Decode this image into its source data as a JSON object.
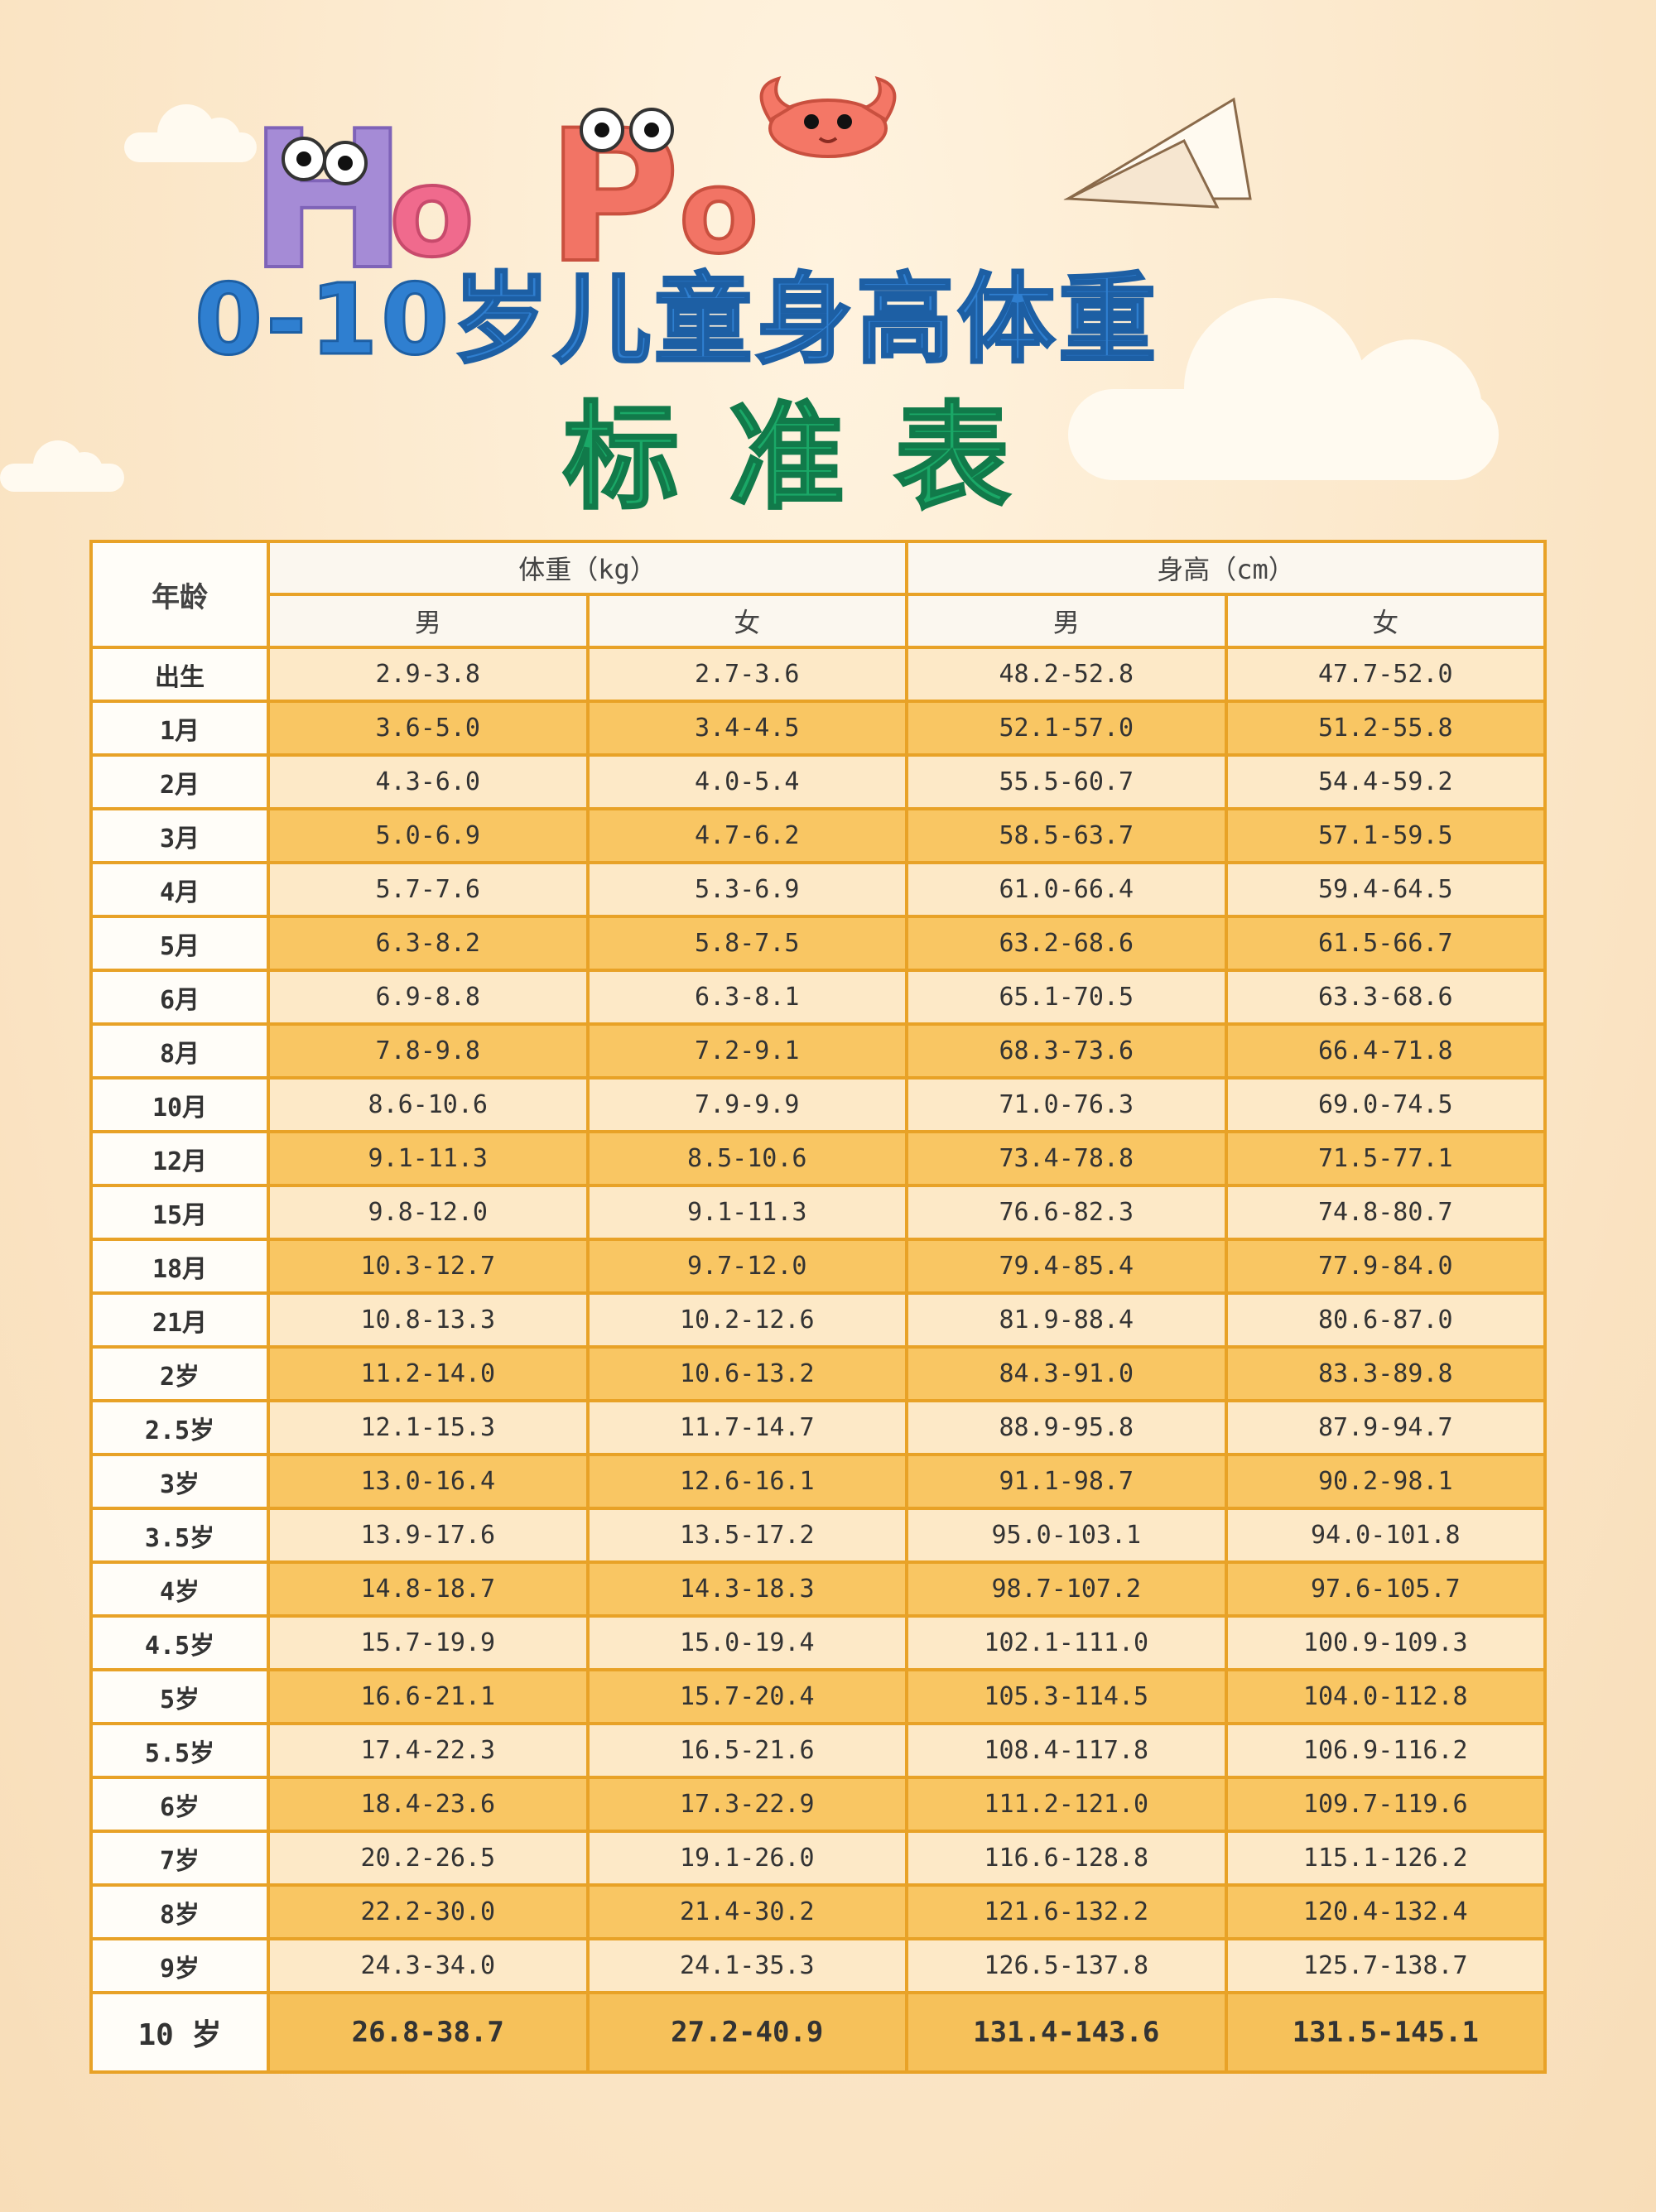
{
  "decor": {
    "letters": [
      "H",
      "o",
      "P",
      "o"
    ]
  },
  "title": {
    "line1": "0-10岁儿童身高体重",
    "line2": "标准表"
  },
  "table": {
    "age_header": "年龄",
    "weight_header": "体重（kg）",
    "height_header": "身高（cm）",
    "male": "男",
    "female": "女",
    "rows": [
      {
        "age": "出生",
        "w_m": "2.9-3.8",
        "w_f": "2.7-3.6",
        "h_m": "48.2-52.8",
        "h_f": "47.7-52.0"
      },
      {
        "age": "1月",
        "w_m": "3.6-5.0",
        "w_f": "3.4-4.5",
        "h_m": "52.1-57.0",
        "h_f": "51.2-55.8"
      },
      {
        "age": "2月",
        "w_m": "4.3-6.0",
        "w_f": "4.0-5.4",
        "h_m": "55.5-60.7",
        "h_f": "54.4-59.2"
      },
      {
        "age": "3月",
        "w_m": "5.0-6.9",
        "w_f": "4.7-6.2",
        "h_m": "58.5-63.7",
        "h_f": "57.1-59.5"
      },
      {
        "age": "4月",
        "w_m": "5.7-7.6",
        "w_f": "5.3-6.9",
        "h_m": "61.0-66.4",
        "h_f": "59.4-64.5"
      },
      {
        "age": "5月",
        "w_m": "6.3-8.2",
        "w_f": "5.8-7.5",
        "h_m": "63.2-68.6",
        "h_f": "61.5-66.7"
      },
      {
        "age": "6月",
        "w_m": "6.9-8.8",
        "w_f": "6.3-8.1",
        "h_m": "65.1-70.5",
        "h_f": "63.3-68.6"
      },
      {
        "age": "8月",
        "w_m": "7.8-9.8",
        "w_f": "7.2-9.1",
        "h_m": "68.3-73.6",
        "h_f": "66.4-71.8"
      },
      {
        "age": "10月",
        "w_m": "8.6-10.6",
        "w_f": "7.9-9.9",
        "h_m": "71.0-76.3",
        "h_f": "69.0-74.5"
      },
      {
        "age": "12月",
        "w_m": "9.1-11.3",
        "w_f": "8.5-10.6",
        "h_m": "73.4-78.8",
        "h_f": "71.5-77.1"
      },
      {
        "age": "15月",
        "w_m": "9.8-12.0",
        "w_f": "9.1-11.3",
        "h_m": "76.6-82.3",
        "h_f": "74.8-80.7"
      },
      {
        "age": "18月",
        "w_m": "10.3-12.7",
        "w_f": "9.7-12.0",
        "h_m": "79.4-85.4",
        "h_f": "77.9-84.0"
      },
      {
        "age": "21月",
        "w_m": "10.8-13.3",
        "w_f": "10.2-12.6",
        "h_m": "81.9-88.4",
        "h_f": "80.6-87.0"
      },
      {
        "age": "2岁",
        "w_m": "11.2-14.0",
        "w_f": "10.6-13.2",
        "h_m": "84.3-91.0",
        "h_f": "83.3-89.8"
      },
      {
        "age": "2.5岁",
        "w_m": "12.1-15.3",
        "w_f": "11.7-14.7",
        "h_m": "88.9-95.8",
        "h_f": "87.9-94.7"
      },
      {
        "age": "3岁",
        "w_m": "13.0-16.4",
        "w_f": "12.6-16.1",
        "h_m": "91.1-98.7",
        "h_f": "90.2-98.1"
      },
      {
        "age": "3.5岁",
        "w_m": "13.9-17.6",
        "w_f": "13.5-17.2",
        "h_m": "95.0-103.1",
        "h_f": "94.0-101.8"
      },
      {
        "age": "4岁",
        "w_m": "14.8-18.7",
        "w_f": "14.3-18.3",
        "h_m": "98.7-107.2",
        "h_f": "97.6-105.7"
      },
      {
        "age": "4.5岁",
        "w_m": "15.7-19.9",
        "w_f": "15.0-19.4",
        "h_m": "102.1-111.0",
        "h_f": "100.9-109.3"
      },
      {
        "age": "5岁",
        "w_m": "16.6-21.1",
        "w_f": "15.7-20.4",
        "h_m": "105.3-114.5",
        "h_f": "104.0-112.8"
      },
      {
        "age": "5.5岁",
        "w_m": "17.4-22.3",
        "w_f": "16.5-21.6",
        "h_m": "108.4-117.8",
        "h_f": "106.9-116.2"
      },
      {
        "age": "6岁",
        "w_m": "18.4-23.6",
        "w_f": "17.3-22.9",
        "h_m": "111.2-121.0",
        "h_f": "109.7-119.6"
      },
      {
        "age": "7岁",
        "w_m": "20.2-26.5",
        "w_f": "19.1-26.0",
        "h_m": "116.6-128.8",
        "h_f": "115.1-126.2"
      },
      {
        "age": "8岁",
        "w_m": "22.2-30.0",
        "w_f": "21.4-30.2",
        "h_m": "121.6-132.2",
        "h_f": "120.4-132.4"
      },
      {
        "age": "9岁",
        "w_m": "24.3-34.0",
        "w_f": "24.1-35.3",
        "h_m": "126.5-137.8",
        "h_f": "125.7-138.7"
      },
      {
        "age": "10 岁",
        "w_m": "26.8-38.7",
        "w_f": "27.2-40.9",
        "h_m": "131.4-143.6",
        "h_f": "131.5-145.1"
      }
    ]
  },
  "colors": {
    "background": "#fbe7c9",
    "border": "#e8a227",
    "row_light": "#fde9c7",
    "row_dark": "#f9c663",
    "title_blue": "#2f7fd0",
    "title_green": "#1aa867"
  }
}
